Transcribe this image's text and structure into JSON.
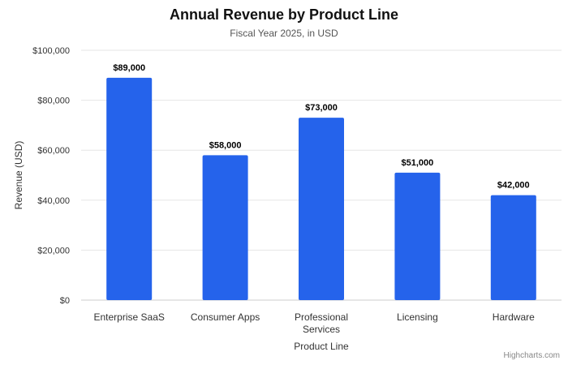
{
  "chart_data": {
    "type": "bar",
    "title": "Annual Revenue by Product Line",
    "subtitle": "Fiscal Year 2025, in USD",
    "xlabel": "Product Line",
    "ylabel": "Revenue (USD)",
    "categories": [
      "Enterprise SaaS",
      "Consumer Apps",
      "Professional Services",
      "Licensing",
      "Hardware"
    ],
    "values": [
      89000,
      58000,
      73000,
      51000,
      42000
    ],
    "data_labels": [
      "$89,000",
      "$58,000",
      "$73,000",
      "$51,000",
      "$42,000"
    ],
    "ylim": [
      0,
      100000
    ],
    "yticks": [
      0,
      20000,
      40000,
      60000,
      80000,
      100000
    ],
    "ytick_labels": [
      "$0",
      "$20,000",
      "$40,000",
      "$60,000",
      "$80,000",
      "$100,000"
    ],
    "grid": true,
    "legend": "none",
    "bar_color": "#2563eb"
  },
  "credits": "Highcharts.com"
}
